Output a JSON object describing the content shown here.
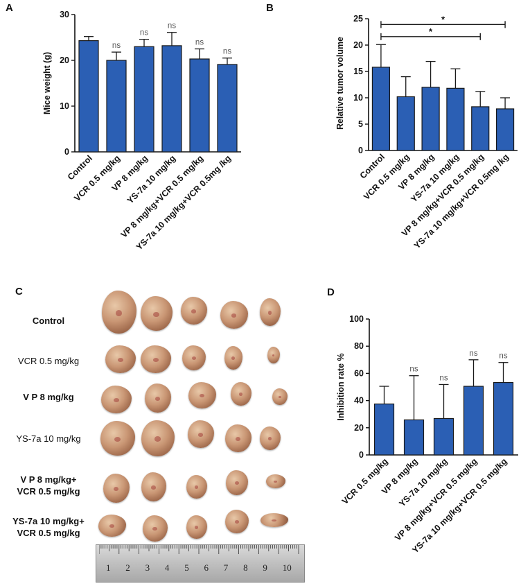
{
  "chart_data": [
    {
      "panel": "A",
      "type": "bar",
      "ylabel": "Mice weight (g)",
      "ylim": [
        0,
        30
      ],
      "yticks": [
        0,
        10,
        20,
        30
      ],
      "categories": [
        "Control",
        "VCR 0.5 mg/kg",
        "VP 8 mg/kg",
        "YS-7a 10 mg/kg",
        "VP 8 mg/kg+VCR 0.5 mg/kg",
        "YS-7a 10 mg/kg+VCR 0.5mg /kg"
      ],
      "values": [
        24.3,
        20.0,
        23.0,
        23.2,
        20.3,
        19.1
      ],
      "errors": [
        0.9,
        1.8,
        1.6,
        2.9,
        2.2,
        1.4
      ],
      "significance": [
        "",
        "ns",
        "ns",
        "ns",
        "ns",
        "ns"
      ],
      "bar_color": "#2b5fb4"
    },
    {
      "panel": "B",
      "type": "bar",
      "ylabel": "Relative tumor volume",
      "ylim": [
        0,
        25
      ],
      "yticks": [
        0,
        5,
        10,
        15,
        20,
        25
      ],
      "categories": [
        "Control",
        "VCR 0.5 mg/kg",
        "VP 8 mg/kg",
        "YS-7a 10 mg/kg",
        "VP 8 mg/kg+VCR 0.5 mg/kg",
        "YS-7a 10 mg/kg+VCR 0.5mg /kg"
      ],
      "values": [
        15.8,
        10.2,
        12.0,
        11.8,
        8.3,
        7.9
      ],
      "errors": [
        4.3,
        3.8,
        4.9,
        3.7,
        2.9,
        2.1
      ],
      "brackets": [
        {
          "from": 0,
          "to": 4,
          "label": "*",
          "y": 21.6
        },
        {
          "from": 0,
          "to": 5,
          "label": "*",
          "y": 23.9
        }
      ],
      "bar_color": "#2b5fb4"
    },
    {
      "panel": "D",
      "type": "bar",
      "ylabel": "Inhibition rate %",
      "ylim": [
        0,
        100
      ],
      "yticks": [
        0,
        20,
        40,
        60,
        80,
        100
      ],
      "categories": [
        "VCR 0.5 mg/kg",
        "VP 8 mg/kg",
        "YS-7a 10 mg/kg",
        "VP 8 mg/kg+VCR 0.5 mg/kg",
        "YS-7a 10 mg/kg+VCR 0.5  mg/kg"
      ],
      "values": [
        37.5,
        25.8,
        26.8,
        50.5,
        53.3
      ],
      "errors": [
        13.0,
        32.5,
        25.0,
        19.5,
        14.7
      ],
      "significance": [
        "",
        "ns",
        "ns",
        "ns",
        "ns"
      ],
      "bar_color": "#2b5fb4"
    }
  ],
  "panel_c": {
    "letter": "C",
    "rows": [
      {
        "label_lines": [
          "Control"
        ],
        "bold": true
      },
      {
        "label_lines": [
          "VCR 0.5 mg/kg"
        ],
        "bold": false
      },
      {
        "label_lines": [
          "V P  8 mg/kg"
        ],
        "bold": true
      },
      {
        "label_lines": [
          "YS-7a 10 mg/kg"
        ],
        "bold": false
      },
      {
        "label_lines": [
          "V P  8 mg/kg+",
          "VCR 0.5 mg/kg"
        ],
        "bold": true
      },
      {
        "label_lines": [
          "YS-7a 10 mg/kg+",
          "VCR 0.5 mg/kg"
        ],
        "bold": true
      }
    ],
    "ruler_numbers": [
      "1",
      "2",
      "3",
      "4",
      "5",
      "6",
      "7",
      "8",
      "9",
      "10"
    ]
  },
  "colors": {
    "bar": "#2b5fb4",
    "bar_edge": "#1a1a1a",
    "axis": "#111111"
  }
}
